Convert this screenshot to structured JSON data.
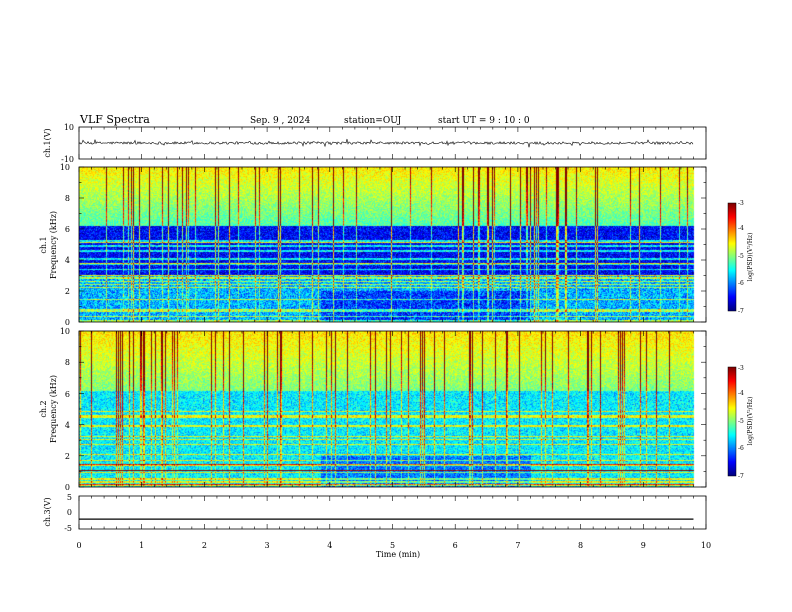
{
  "header": {
    "title": "VLF Spectra",
    "date": "Sep. 9 , 2024",
    "station": "station=OUJ",
    "start": "start  UT =  9 : 10 : 0"
  },
  "chart_data": [
    {
      "type": "line",
      "ylabel": "ch.1(V)",
      "ylim": [
        -10,
        10
      ],
      "yticks": [
        "10",
        "-10"
      ],
      "xlim": [
        0,
        10
      ],
      "baseline": 0,
      "description_of_signal": "noisy trace near 0 V"
    },
    {
      "type": "heatmap",
      "ylabel": "ch.1\nFrequency (kHz)",
      "ylabel_lines": [
        "ch.1",
        "Frequency (kHz)"
      ],
      "ylim": [
        0,
        10
      ],
      "yticks": [
        "0",
        "2",
        "4",
        "6",
        "8",
        "10"
      ],
      "xlim": [
        0,
        10
      ],
      "colorbar": {
        "label": "log(PSD)(V²/Hz)",
        "ticks": [
          "-3",
          "-4",
          "-5",
          "-6",
          "-7"
        ],
        "range": [
          -7,
          -3
        ]
      }
    },
    {
      "type": "heatmap",
      "ylabel": "ch.2\nFrequency (kHz)",
      "ylabel_lines": [
        "ch.2",
        "Frequency (kHz)"
      ],
      "ylim": [
        0,
        10
      ],
      "yticks": [
        "0",
        "2",
        "4",
        "6",
        "8",
        "10"
      ],
      "xlim": [
        0,
        10
      ],
      "colorbar": {
        "label": "log(PSD)(V²/Hz)",
        "ticks": [
          "-3",
          "-4",
          "-5",
          "-6",
          "-7"
        ],
        "range": [
          -7,
          -3
        ]
      }
    },
    {
      "type": "line",
      "ylabel": "ch.3(V)",
      "ylim": [
        -5,
        5
      ],
      "yticks": [
        "5",
        "0",
        "-5"
      ],
      "xlim": [
        0,
        10
      ],
      "x": [
        0,
        9.8
      ],
      "y": [
        -2,
        -2
      ]
    }
  ],
  "xaxis": {
    "label": "Time (min)",
    "ticks": [
      "0",
      "1",
      "2",
      "3",
      "4",
      "5",
      "6",
      "7",
      "8",
      "9",
      "10"
    ]
  },
  "colors": {
    "spec_low": "#00007a",
    "spec_high": "#c00000",
    "trace": "#000000"
  }
}
